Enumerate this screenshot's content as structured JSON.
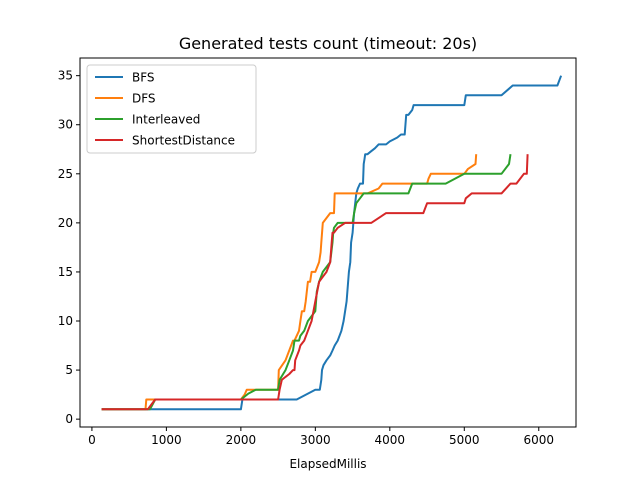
{
  "chart_data": {
    "type": "line",
    "title": "Generated tests count (timeout: 20s)",
    "xlabel": "ElapsedMillis",
    "ylabel": "",
    "xlim": [
      -160,
      6500
    ],
    "ylim": [
      -0.8,
      36.8
    ],
    "xticks": [
      0,
      1000,
      2000,
      3000,
      4000,
      5000,
      6000
    ],
    "yticks": [
      0,
      5,
      10,
      15,
      20,
      25,
      30,
      35
    ],
    "grid": false,
    "legend_position": "top-left",
    "series": [
      {
        "name": "BFS",
        "color": "#1f77b4",
        "x": [
          130,
          2000,
          2020,
          2750,
          3000,
          3060,
          3080,
          3090,
          3110,
          3150,
          3200,
          3230,
          3260,
          3300,
          3350,
          3380,
          3400,
          3420,
          3450,
          3470,
          3480,
          3500,
          3520,
          3550,
          3570,
          3600,
          3640,
          3650,
          3660,
          3670,
          3690,
          3700,
          3750,
          3800,
          3850,
          3900,
          3950,
          4000,
          4050,
          4100,
          4150,
          4200,
          4220,
          4250,
          4300,
          4320,
          4400,
          5000,
          5020,
          5500,
          5650,
          5700,
          6250,
          6300
        ],
        "y": [
          1,
          1,
          2,
          2,
          3,
          3,
          4,
          5,
          5.5,
          6,
          6.5,
          7,
          7.5,
          8,
          9,
          10,
          11,
          12,
          15,
          16,
          18,
          19,
          21,
          23,
          23.5,
          24,
          24,
          26,
          26.5,
          27,
          27,
          27,
          27.3,
          27.6,
          28,
          28,
          28,
          28.3,
          28.5,
          28.7,
          29,
          29,
          31,
          31,
          31.5,
          32,
          32,
          32,
          33,
          33,
          34,
          34,
          34,
          35
        ]
      },
      {
        "name": "DFS",
        "color": "#ff7f0e",
        "x": [
          130,
          720,
          730,
          2000,
          2050,
          2080,
          2200,
          2500,
          2510,
          2600,
          2700,
          2720,
          2780,
          2800,
          2820,
          2850,
          2870,
          2900,
          2930,
          2950,
          3000,
          3050,
          3070,
          3080,
          3100,
          3150,
          3200,
          3250,
          3260,
          3300,
          3600,
          3650,
          3700,
          3850,
          3900,
          4000,
          4500,
          4520,
          4550,
          4900,
          5000,
          5050,
          5150,
          5160
        ],
        "y": [
          1,
          1,
          2,
          2,
          2.5,
          3,
          3,
          3,
          5,
          6,
          8,
          8,
          9,
          10,
          11,
          11,
          12,
          14,
          14,
          15,
          15,
          16,
          17,
          18,
          20,
          20.5,
          21,
          21,
          23,
          23,
          23,
          23,
          23,
          23.5,
          24,
          24,
          24,
          24.5,
          25,
          25,
          25,
          25.5,
          26,
          27
        ]
      },
      {
        "name": "Interleaved",
        "color": "#2ca02c",
        "x": [
          130,
          780,
          850,
          2000,
          2050,
          2100,
          2200,
          2500,
          2520,
          2600,
          2650,
          2700,
          2720,
          2780,
          2800,
          2850,
          2900,
          2950,
          3000,
          3020,
          3050,
          3100,
          3150,
          3200,
          3230,
          3240,
          3250,
          3300,
          3500,
          3520,
          3550,
          3600,
          3650,
          3700,
          4000,
          4250,
          4300,
          4750,
          5000,
          5500,
          5600,
          5620
        ],
        "y": [
          1,
          1,
          2,
          2,
          2.3,
          2.6,
          3,
          3,
          4,
          5,
          6,
          7,
          8,
          8,
          8.5,
          9,
          10,
          10.5,
          11,
          13,
          14,
          15,
          15.5,
          16,
          18,
          19,
          19.5,
          20,
          20,
          21,
          22,
          22.5,
          23,
          23,
          23,
          23,
          24,
          24,
          25,
          25,
          26,
          27
        ]
      },
      {
        "name": "ShortestDistance",
        "color": "#d62728",
        "x": [
          130,
          750,
          800,
          850,
          2000,
          2500,
          2520,
          2550,
          2600,
          2650,
          2700,
          2720,
          2730,
          2780,
          2800,
          2850,
          2900,
          2950,
          3000,
          3050,
          3100,
          3150,
          3200,
          3220,
          3230,
          3250,
          3300,
          3400,
          3500,
          3750,
          3950,
          4450,
          4500,
          5000,
          5020,
          5100,
          5500,
          5620,
          5700,
          5800,
          5840,
          5850
        ],
        "y": [
          1,
          1,
          1.5,
          2,
          2,
          2,
          3,
          4,
          4.3,
          4.6,
          5,
          5,
          6,
          7,
          7.5,
          8,
          9,
          10,
          12,
          14,
          14.5,
          15,
          16,
          18,
          19,
          19,
          19.5,
          20,
          20,
          20,
          21,
          21,
          22,
          22,
          22.5,
          23,
          23,
          24,
          24,
          25,
          25,
          27
        ]
      }
    ]
  }
}
